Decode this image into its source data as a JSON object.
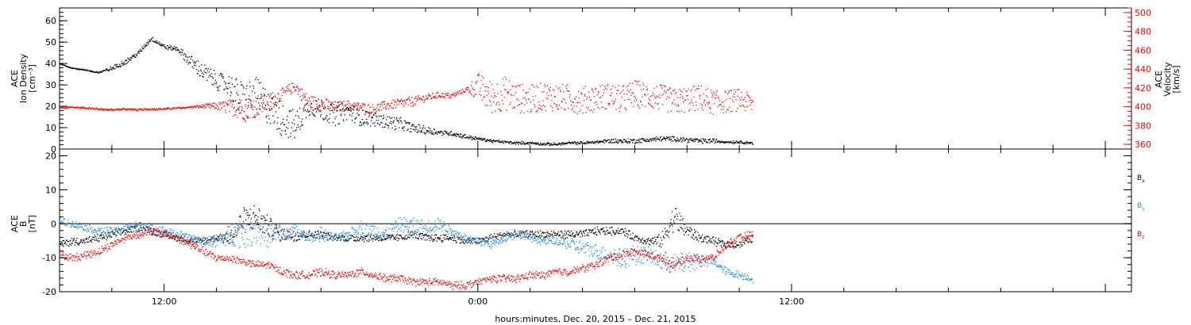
{
  "chart_data": [
    {
      "type": "scatter",
      "panel": "top",
      "ylabel_lines": [
        "ACE",
        "Ion Density",
        "[cm⁻³]"
      ],
      "ylim": [
        0,
        66
      ],
      "yticks": [
        0,
        10,
        20,
        30,
        40,
        50,
        60
      ],
      "ylabel_right_lines": [
        "ACE",
        "Velocity",
        "[km/s]"
      ],
      "ylim_right": [
        355,
        505
      ],
      "yticks_right": [
        360,
        380,
        400,
        420,
        440,
        460,
        480,
        500
      ],
      "series": [
        {
          "name": "Ion Density",
          "color": "#000000",
          "axis": "left",
          "x_hours": [
            -16,
            -15.5,
            -15,
            -14.5,
            -14,
            -13.5,
            -13,
            -12.5,
            -12,
            -11.5,
            -11,
            -10.5,
            -10,
            -9.5,
            -9,
            -8.5,
            -8,
            -7.5,
            -7,
            -6.5,
            -6,
            -5.5,
            -5,
            -4.5,
            -4,
            -3.5,
            -3,
            -2.5,
            -2,
            -1.5,
            -1,
            -0.5,
            0,
            0.5,
            1,
            1.5,
            2,
            2.5,
            3,
            3.5,
            4,
            4.5,
            5,
            5.5,
            6,
            6.5,
            7,
            7.5,
            8,
            8.5,
            9,
            9.5,
            10,
            10.5
          ],
          "values": [
            40,
            38,
            37,
            36,
            38,
            41,
            45,
            52,
            48,
            47,
            41,
            36,
            32,
            30,
            22,
            24,
            20,
            14,
            11,
            20,
            19,
            16,
            18,
            15,
            14,
            13,
            12,
            10,
            9,
            8,
            7.5,
            6,
            5,
            4,
            3.5,
            3,
            3,
            2.5,
            2.5,
            3,
            3,
            3.5,
            4,
            4,
            4,
            4.5,
            5,
            5,
            4.5,
            4,
            4,
            3.5,
            3.5,
            3
          ],
          "scatter": [
            0,
            0,
            0,
            0,
            1,
            1,
            1,
            1,
            1,
            1,
            3,
            4,
            4,
            5,
            10,
            10,
            8,
            8,
            7,
            4,
            5,
            5,
            4,
            4,
            3,
            3,
            3,
            2,
            2,
            1,
            1,
            1,
            0.5,
            0.5,
            0.5,
            0.5,
            0.5,
            0.5,
            0.5,
            0.5,
            0.5,
            0.5,
            1,
            1,
            1,
            1,
            1,
            1,
            1,
            1,
            1,
            0.5,
            0.5,
            0.5
          ]
        },
        {
          "name": "Velocity",
          "color": "#ff0000",
          "axis": "right",
          "x_hours": [
            -16,
            -15.5,
            -15,
            -14.5,
            -14,
            -13.5,
            -13,
            -12.5,
            -12,
            -11.5,
            -11,
            -10.5,
            -10,
            -9.5,
            -9,
            -8.5,
            -8,
            -7.5,
            -7,
            -6.5,
            -6,
            -5.5,
            -5,
            -4.5,
            -4,
            -3.5,
            -3,
            -2.5,
            -2,
            -1.5,
            -1,
            -0.5,
            0,
            0.5,
            1,
            1.5,
            2,
            2.5,
            3,
            3.5,
            4,
            4.5,
            5,
            5.5,
            6,
            6.5,
            7,
            7.5,
            8,
            8.5,
            9,
            9.5,
            10,
            10.5
          ],
          "values": [
            399,
            400,
            399,
            398,
            397,
            398,
            397,
            398,
            398,
            399,
            400,
            401,
            401,
            400,
            398,
            402,
            405,
            414,
            422,
            405,
            403,
            400,
            402,
            400,
            398,
            402,
            404,
            406,
            410,
            413,
            412,
            418,
            422,
            410,
            415,
            410,
            408,
            412,
            410,
            409,
            407,
            410,
            412,
            408,
            414,
            412,
            410,
            406,
            408,
            410,
            405,
            406,
            408,
            403
          ],
          "scatter": [
            1,
            1,
            1,
            1,
            1,
            1,
            1,
            1,
            1,
            1,
            1,
            2,
            4,
            8,
            12,
            12,
            10,
            6,
            6,
            8,
            8,
            6,
            5,
            5,
            5,
            5,
            5,
            5,
            4,
            3,
            3,
            2,
            14,
            18,
            18,
            16,
            16,
            15,
            15,
            15,
            15,
            14,
            14,
            15,
            15,
            14,
            14,
            14,
            14,
            14,
            13,
            12,
            12,
            10
          ]
        }
      ]
    },
    {
      "type": "scatter",
      "panel": "bottom",
      "ylabel_lines": [
        "ACE",
        "B",
        "[nT]"
      ],
      "ylim": [
        -20,
        22
      ],
      "yticks": [
        -20,
        -10,
        0,
        10,
        20
      ],
      "zero_line": true,
      "series": [
        {
          "name": "Bx",
          "label": "B",
          "subscript": "x",
          "color": "#000000",
          "x_hours": [
            -16,
            -15.5,
            -15,
            -14.5,
            -14,
            -13.5,
            -13,
            -12.5,
            -12,
            -11.5,
            -11,
            -10.5,
            -10,
            -9.5,
            -9,
            -8.5,
            -8,
            -7.5,
            -7,
            -6.5,
            -6,
            -5.5,
            -5,
            -4.5,
            -4,
            -3.5,
            -3,
            -2.5,
            -2,
            -1.5,
            -1,
            -0.5,
            0,
            0.5,
            1,
            1.5,
            2,
            2.5,
            3,
            3.5,
            4,
            4.5,
            5,
            5.5,
            6,
            6.5,
            7,
            7.5,
            8,
            8.5,
            9,
            9.5,
            10,
            10.5
          ],
          "values": [
            -6,
            -5,
            -5,
            -4,
            -3,
            -2,
            -1,
            -2,
            -3,
            -4,
            -5,
            -5,
            -4,
            -4,
            1,
            2,
            -1,
            -3,
            -3,
            -3,
            -3,
            -4,
            -4,
            -4,
            -4,
            -4,
            -4,
            -3,
            -4,
            -4,
            -4,
            -5,
            -5,
            -4,
            -3,
            -3,
            -3,
            -3,
            -3,
            -3,
            -3,
            -2,
            -2,
            -2,
            -4,
            -5,
            -5,
            2,
            -2,
            -4,
            -5,
            -6,
            -6,
            -4
          ],
          "scatter": [
            1,
            1,
            1,
            1,
            1,
            1,
            1,
            1,
            1,
            1,
            1,
            1,
            1,
            2,
            4,
            4,
            3,
            2,
            2,
            1,
            1,
            1,
            1,
            1,
            1,
            1,
            1,
            1,
            1,
            1,
            1,
            1,
            1,
            1,
            1,
            1,
            1,
            1,
            1,
            1,
            1,
            1,
            1,
            1,
            1,
            1,
            2,
            4,
            2,
            1,
            1,
            1,
            1,
            1
          ]
        },
        {
          "name": "By",
          "label": "B",
          "subscript": "y",
          "color": "#1f8ee6",
          "x_hours": [
            -16,
            -15.5,
            -15,
            -14.5,
            -14,
            -13.5,
            -13,
            -12.5,
            -12,
            -11.5,
            -11,
            -10.5,
            -10,
            -9.5,
            -9,
            -8.5,
            -8,
            -7.5,
            -7,
            -6.5,
            -6,
            -5.5,
            -5,
            -4.5,
            -4,
            -3.5,
            -3,
            -2.5,
            -2,
            -1.5,
            -1,
            -0.5,
            0,
            0.5,
            1,
            1.5,
            2,
            2.5,
            3,
            3.5,
            4,
            4.5,
            5,
            5.5,
            6,
            6.5,
            7,
            7.5,
            8,
            8.5,
            9,
            9.5,
            10,
            10.5
          ],
          "values": [
            1,
            0,
            -1,
            -2,
            -2,
            -1,
            0,
            -1,
            -2,
            -3,
            -4,
            -5,
            -5,
            -3,
            -2,
            -1,
            -3,
            -3,
            -2,
            -4,
            -3,
            -4,
            -3,
            -1,
            -2,
            -3,
            0,
            -1,
            -1,
            0,
            -2,
            -4,
            -5,
            -6,
            -4,
            -3,
            -4,
            -5,
            -5,
            -6,
            -7,
            -8,
            -9,
            -10,
            -9,
            -9,
            -11,
            -12,
            -11,
            -11,
            -11,
            -14,
            -15,
            -16
          ],
          "scatter": [
            1,
            1,
            1,
            1,
            1,
            1,
            1,
            1,
            1,
            1,
            1,
            1,
            2,
            3,
            5,
            5,
            4,
            2,
            2,
            1,
            2,
            1,
            1,
            2,
            2,
            2,
            2,
            3,
            2,
            2,
            1,
            1,
            1,
            1,
            1,
            1,
            1,
            1,
            1,
            2,
            2,
            2,
            2,
            3,
            3,
            2,
            3,
            3,
            3,
            2,
            1,
            1,
            1,
            1
          ]
        },
        {
          "name": "Bz",
          "label": "B",
          "subscript": "z",
          "color": "#ff0000",
          "x_hours": [
            -16,
            -15.5,
            -15,
            -14.5,
            -14,
            -13.5,
            -13,
            -12.5,
            -12,
            -11.5,
            -11,
            -10.5,
            -10,
            -9.5,
            -9,
            -8.5,
            -8,
            -7.5,
            -7,
            -6.5,
            -6,
            -5.5,
            -5,
            -4.5,
            -4,
            -3.5,
            -3,
            -2.5,
            -2,
            -1.5,
            -1,
            -0.5,
            0,
            0.5,
            1,
            1.5,
            2,
            2.5,
            3,
            3.5,
            4,
            4.5,
            5,
            5.5,
            6,
            6.5,
            7,
            7.5,
            8,
            8.5,
            9,
            9.5,
            10,
            10.5
          ],
          "values": [
            -9,
            -10,
            -9,
            -8,
            -6,
            -4,
            -3,
            -2,
            -3,
            -4,
            -6,
            -8,
            -10,
            -10,
            -11,
            -12,
            -12,
            -14,
            -15,
            -15,
            -14,
            -15,
            -15,
            -14,
            -15,
            -16,
            -16,
            -17,
            -17,
            -17,
            -18,
            -18,
            -17,
            -16,
            -16,
            -16,
            -15,
            -15,
            -14,
            -14,
            -13,
            -12,
            -10,
            -9,
            -8,
            -9,
            -10,
            -12,
            -10,
            -10,
            -10,
            -6,
            -4,
            -3
          ],
          "scatter": [
            1,
            1,
            1,
            1,
            1,
            1,
            1,
            1,
            1,
            1,
            1,
            1,
            1,
            1,
            1,
            1,
            1,
            1,
            1,
            1,
            1,
            1,
            1,
            1,
            1,
            1,
            1,
            1,
            1,
            1,
            1,
            1,
            1,
            1,
            1,
            1,
            1,
            1,
            1,
            1,
            1,
            1,
            1,
            1,
            1,
            1,
            1,
            1,
            1,
            1,
            1,
            1,
            1,
            1
          ]
        }
      ]
    }
  ],
  "x_axis": {
    "range_hours": [
      -16,
      25
    ],
    "ticks": [
      {
        "hours": -12,
        "label": "12:00"
      },
      {
        "hours": 0,
        "label": "0:00"
      },
      {
        "hours": 12,
        "label": "12:00"
      }
    ],
    "label": "hours:minutes, Dec. 20, 2015 – Dec. 21, 2015"
  },
  "legend": {
    "placement": "right"
  }
}
